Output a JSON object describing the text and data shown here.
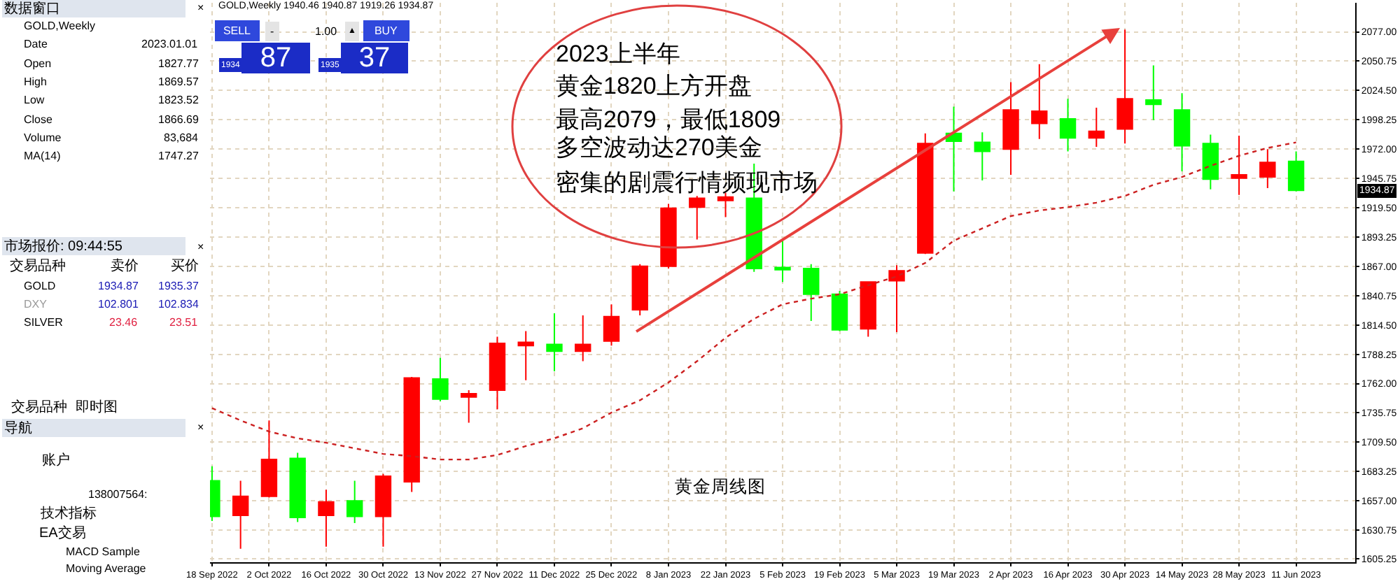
{
  "chart_data": {
    "type": "candlestick",
    "title": "GOLD,Weekly 1940.46 1940.87 1919.26 1934.87",
    "x": [
      "2022-09-18",
      "2022-09-25",
      "2022-10-02",
      "2022-10-09",
      "2022-10-16",
      "2022-10-23",
      "2022-10-30",
      "2022-11-06",
      "2022-11-13",
      "2022-11-20",
      "2022-11-27",
      "2022-12-04",
      "2022-12-11",
      "2022-12-18",
      "2022-12-25",
      "2023-01-01",
      "2023-01-08",
      "2023-01-15",
      "2023-01-22",
      "2023-01-29",
      "2023-02-05",
      "2023-02-12",
      "2023-02-19",
      "2023-02-26",
      "2023-03-05",
      "2023-03-12",
      "2023-03-19",
      "2023-03-26",
      "2023-04-02",
      "2023-04-09",
      "2023-04-16",
      "2023-04-23",
      "2023-04-30",
      "2023-05-07",
      "2023-05-14",
      "2023-05-21",
      "2023-05-28",
      "2023-06-04",
      "2023-06-11"
    ],
    "ohlc": [
      [
        1675,
        1688,
        1639,
        1643
      ],
      [
        1644,
        1675,
        1614,
        1661
      ],
      [
        1661,
        1729,
        1660,
        1694
      ],
      [
        1695,
        1700,
        1638,
        1642
      ],
      [
        1644,
        1667,
        1616,
        1656
      ],
      [
        1657,
        1675,
        1637,
        1643
      ],
      [
        1643,
        1681,
        1616,
        1679
      ],
      [
        1674,
        1768,
        1665,
        1767
      ],
      [
        1766,
        1785,
        1746,
        1748
      ],
      [
        1750,
        1756,
        1727,
        1753
      ],
      [
        1756,
        1804,
        1739,
        1798
      ],
      [
        1796,
        1809,
        1765,
        1799
      ],
      [
        1797,
        1825,
        1773,
        1791
      ],
      [
        1791,
        1823,
        1782,
        1797
      ],
      [
        1800,
        1833,
        1796,
        1822
      ],
      [
        1828,
        1869,
        1823,
        1867
      ],
      [
        1867,
        1923,
        1865,
        1919
      ],
      [
        1920,
        1930,
        1891,
        1928
      ],
      [
        1926,
        1933,
        1911,
        1929
      ],
      [
        1928,
        1959,
        1862,
        1865
      ],
      [
        1866,
        1890,
        1853,
        1864
      ],
      [
        1865,
        1869,
        1818,
        1842
      ],
      [
        1842,
        1845,
        1809,
        1810
      ],
      [
        1811,
        1853,
        1804,
        1853
      ],
      [
        1854,
        1868,
        1808,
        1863
      ],
      [
        1879,
        1986,
        1878,
        1977
      ],
      [
        1986,
        2010,
        1934,
        1979
      ],
      [
        1978,
        1987,
        1944,
        1970
      ],
      [
        1972,
        2032,
        1949,
        2007
      ],
      [
        1995,
        2048,
        1981,
        2006
      ],
      [
        1999,
        2017,
        1970,
        1982
      ],
      [
        1982,
        2009,
        1974,
        1988
      ],
      [
        1990,
        2079,
        1977,
        2017
      ],
      [
        2016,
        2047,
        1998,
        2012
      ],
      [
        2007,
        2022,
        1952,
        1975
      ],
      [
        1977,
        1985,
        1936,
        1945
      ],
      [
        1946,
        1984,
        1931,
        1949
      ],
      [
        1947,
        1972,
        1937,
        1960
      ],
      [
        1961,
        1970,
        1934,
        1935
      ]
    ],
    "colors": [
      "#00ff00",
      "#ff0000",
      "#ff0000",
      "#00ff00",
      "#ff0000",
      "#00ff00",
      "#ff0000",
      "#ff0000",
      "#00ff00",
      "#ff0000",
      "#ff0000",
      "#ff0000",
      "#00ff00",
      "#ff0000",
      "#ff0000",
      "#ff0000",
      "#ff0000",
      "#ff0000",
      "#ff0000",
      "#00ff00",
      "#00ff00",
      "#00ff00",
      "#00ff00",
      "#ff0000",
      "#ff0000",
      "#ff0000",
      "#00ff00",
      "#00ff00",
      "#ff0000",
      "#ff0000",
      "#00ff00",
      "#ff0000",
      "#ff0000",
      "#00ff00",
      "#00ff00",
      "#00ff00",
      "#ff0000",
      "#ff0000",
      "#00ff00"
    ],
    "series": [
      {
        "type": "line",
        "color": "#cc2020",
        "line_style": "dotted",
        "values": [
          1740,
          1729,
          1719,
          1713,
          1709,
          1704,
          1699,
          1697,
          1694,
          1694,
          1698,
          1706,
          1713,
          1722,
          1736,
          1747,
          1763,
          1782,
          1803,
          1820,
          1833,
          1838,
          1842,
          1850,
          1858,
          1870,
          1890,
          1901,
          1912,
          1917,
          1920,
          1924,
          1930,
          1940,
          1947,
          1957,
          1966,
          1973,
          1978
        ]
      }
    ],
    "xlim": [
      "2022-09-17T12:00",
      "2023-06-25T12:00"
    ],
    "xticks": [
      {
        "value": "2022-09-18",
        "label": "18 Sep 2022"
      },
      {
        "value": "2022-10-02",
        "label": "2 Oct 2022"
      },
      {
        "value": "2022-10-16",
        "label": "16 Oct 2022"
      },
      {
        "value": "2022-10-30",
        "label": "30 Oct 2022"
      },
      {
        "value": "2022-11-13",
        "label": "13 Nov 2022"
      },
      {
        "value": "2022-11-27",
        "label": "27 Nov 2022"
      },
      {
        "value": "2022-12-11",
        "label": "11 Dec 2022"
      },
      {
        "value": "2022-12-25",
        "label": "25 Dec 2022"
      },
      {
        "value": "2023-01-08",
        "label": "8 Jan 2023"
      },
      {
        "value": "2023-01-22",
        "label": "22 Jan 2023"
      },
      {
        "value": "2023-02-05",
        "label": "5 Feb 2023"
      },
      {
        "value": "2023-02-19",
        "label": "19 Feb 2023"
      },
      {
        "value": "2023-03-05",
        "label": "5 Mar 2023"
      },
      {
        "value": "2023-03-19",
        "label": "19 Mar 2023"
      },
      {
        "value": "2023-04-02",
        "label": "2 Apr 2023"
      },
      {
        "value": "2023-04-16",
        "label": "16 Apr 2023"
      },
      {
        "value": "2023-04-30",
        "label": "30 Apr 2023"
      },
      {
        "value": "2023-05-14",
        "label": "14 May 2023"
      },
      {
        "value": "2023-05-28",
        "label": "28 May 2023"
      },
      {
        "value": "2023-06-11",
        "label": "11 Jun 2023"
      }
    ],
    "ylim": [
      1602,
      2103
    ],
    "yticks": [
      {
        "value": 2077,
        "label": "2077.00"
      },
      {
        "value": 2050.75,
        "label": "2050.75"
      },
      {
        "value": 2024.5,
        "label": "2024.50"
      },
      {
        "value": 1998.25,
        "label": "1998.25"
      },
      {
        "value": 1972,
        "label": "1972.00"
      },
      {
        "value": 1945.75,
        "label": "1945.75"
      },
      {
        "value": 1919.5,
        "label": "1919.50"
      },
      {
        "value": 1893.25,
        "label": "1893.25"
      },
      {
        "value": 1867,
        "label": "1867.00"
      },
      {
        "value": 1840.75,
        "label": "1840.75"
      },
      {
        "value": 1814.5,
        "label": "1814.50"
      },
      {
        "value": 1788.25,
        "label": "1788.25"
      },
      {
        "value": 1762,
        "label": "1762.00"
      },
      {
        "value": 1735.75,
        "label": "1735.75"
      },
      {
        "value": 1709.5,
        "label": "1709.50"
      },
      {
        "value": 1683.25,
        "label": "1683.25"
      },
      {
        "value": 1657,
        "label": "1657.00"
      },
      {
        "value": 1630.75,
        "label": "1630.75"
      },
      {
        "value": 1605.25,
        "label": "1605.25"
      }
    ],
    "grid": true,
    "annotations": [
      "2023上半年",
      "黄金1820上方开盘",
      "最高2079，最低1809",
      "多空波动达270美金",
      "密集的剧震行情频现市场",
      "黄金周线图",
      {
        "text": "1934.87",
        "y": 1934.87
      },
      "SELL",
      "-",
      "1.00",
      "▲",
      "BUY",
      "1934",
      "87",
      "1935",
      "37",
      "数据窗口",
      "×",
      "GOLD,Weekly",
      "Date",
      "2023.01.01",
      "Open",
      "1827.77",
      "High",
      "1869.57",
      "Low",
      "1823.52",
      "Close",
      "1866.69",
      "Volume",
      "83,684",
      "MA(14)",
      "1747.27",
      "市场报价: 09:44:55",
      "×",
      "交易品种",
      "卖价",
      "买价",
      "GOLD",
      "1934.87",
      "1935.37",
      "DXY",
      "102.801",
      "102.834",
      "SILVER",
      "23.46",
      "23.51",
      "交易品种",
      "即时图",
      "导航",
      "×",
      "账户",
      "138007564:",
      "技术指标",
      "EA交易",
      "MACD Sample",
      "Moving Average"
    ]
  }
}
